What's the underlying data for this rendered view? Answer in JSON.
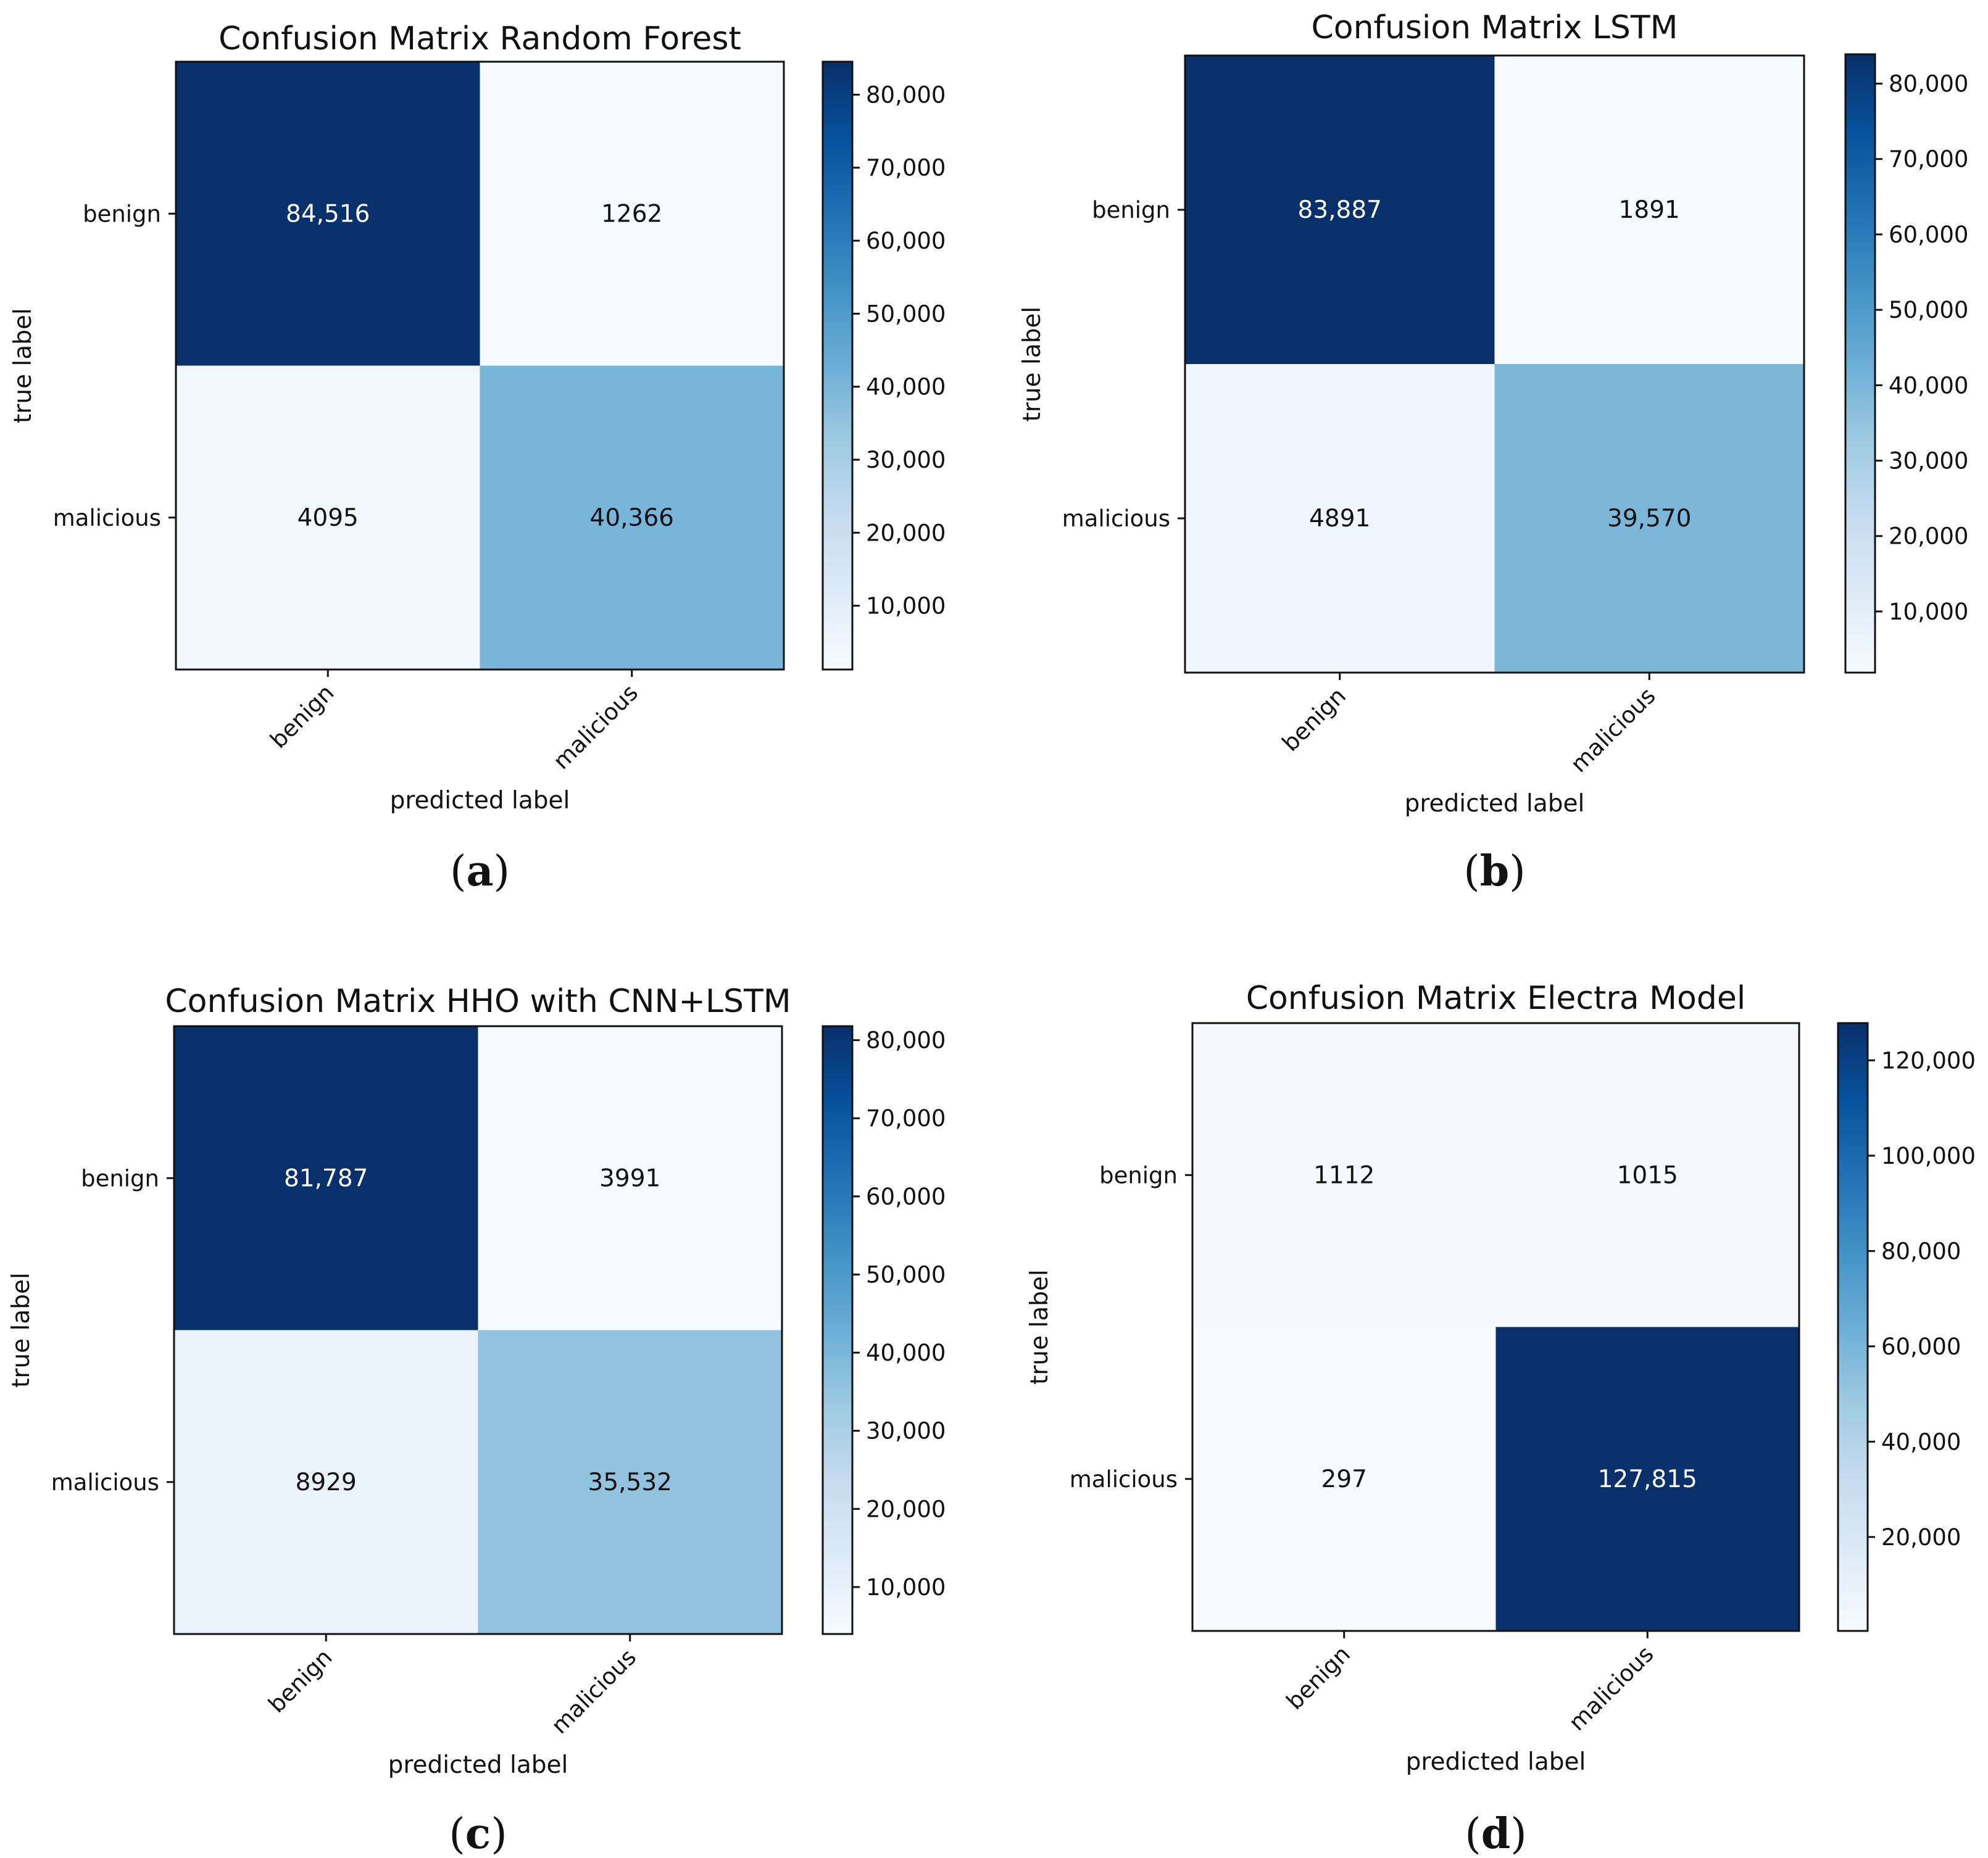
{
  "chart_data": [
    {
      "type": "heatmap",
      "title": "Confusion Matrix Random Forest",
      "caption_letter": "a",
      "xlabel": "predicted label",
      "ylabel": "true label",
      "row_labels": [
        "benign",
        "malicious"
      ],
      "col_labels": [
        "benign",
        "malicious"
      ],
      "matrix": [
        [
          84516,
          1262
        ],
        [
          4095,
          40366
        ]
      ],
      "value_labels": [
        [
          "84,516",
          "1262"
        ],
        [
          "4095",
          "40,366"
        ]
      ],
      "colorbar_ticks": [
        10000,
        20000,
        30000,
        40000,
        50000,
        60000,
        70000,
        80000
      ],
      "colorbar_tick_labels": [
        "10,000",
        "20,000",
        "30,000",
        "40,000",
        "50,000",
        "60,000",
        "70,000",
        "80,000"
      ],
      "colorbar_range": [
        1262,
        84516
      ]
    },
    {
      "type": "heatmap",
      "title": "Confusion Matrix LSTM",
      "caption_letter": "b",
      "xlabel": "predicted label",
      "ylabel": "true label",
      "row_labels": [
        "benign",
        "malicious"
      ],
      "col_labels": [
        "benign",
        "malicious"
      ],
      "matrix": [
        [
          83887,
          1891
        ],
        [
          4891,
          39570
        ]
      ],
      "value_labels": [
        [
          "83,887",
          "1891"
        ],
        [
          "4891",
          "39,570"
        ]
      ],
      "colorbar_ticks": [
        10000,
        20000,
        30000,
        40000,
        50000,
        60000,
        70000,
        80000
      ],
      "colorbar_tick_labels": [
        "10,000",
        "20,000",
        "30,000",
        "40,000",
        "50,000",
        "60,000",
        "70,000",
        "80,000"
      ],
      "colorbar_range": [
        1891,
        83887
      ]
    },
    {
      "type": "heatmap",
      "title": "Confusion Matrix HHO with CNN+LSTM",
      "caption_letter": "c",
      "xlabel": "predicted label",
      "ylabel": "true label",
      "row_labels": [
        "benign",
        "malicious"
      ],
      "col_labels": [
        "benign",
        "malicious"
      ],
      "matrix": [
        [
          81787,
          3991
        ],
        [
          8929,
          35532
        ]
      ],
      "value_labels": [
        [
          "81,787",
          "3991"
        ],
        [
          "8929",
          "35,532"
        ]
      ],
      "colorbar_ticks": [
        10000,
        20000,
        30000,
        40000,
        50000,
        60000,
        70000,
        80000
      ],
      "colorbar_tick_labels": [
        "10,000",
        "20,000",
        "30,000",
        "40,000",
        "50,000",
        "60,000",
        "70,000",
        "80,000"
      ],
      "colorbar_range": [
        3991,
        81787
      ]
    },
    {
      "type": "heatmap",
      "title": "Confusion Matrix Electra Model",
      "caption_letter": "d",
      "xlabel": "predicted label",
      "ylabel": "true label",
      "row_labels": [
        "benign",
        "malicious"
      ],
      "col_labels": [
        "benign",
        "malicious"
      ],
      "matrix": [
        [
          1112,
          1015
        ],
        [
          297,
          127815
        ]
      ],
      "value_labels": [
        [
          "1112",
          "1015"
        ],
        [
          "297",
          "127,815"
        ]
      ],
      "colorbar_ticks": [
        20000,
        40000,
        60000,
        80000,
        100000,
        120000
      ],
      "colorbar_tick_labels": [
        "20,000",
        "40,000",
        "60,000",
        "80,000",
        "100,000",
        "120,000"
      ],
      "colorbar_range": [
        297,
        127815
      ]
    }
  ],
  "colormap": [
    "#f7fbff",
    "#deebf7",
    "#c6dbef",
    "#9ecae1",
    "#6baed6",
    "#4292c6",
    "#2171b5",
    "#08519c",
    "#08306b"
  ]
}
